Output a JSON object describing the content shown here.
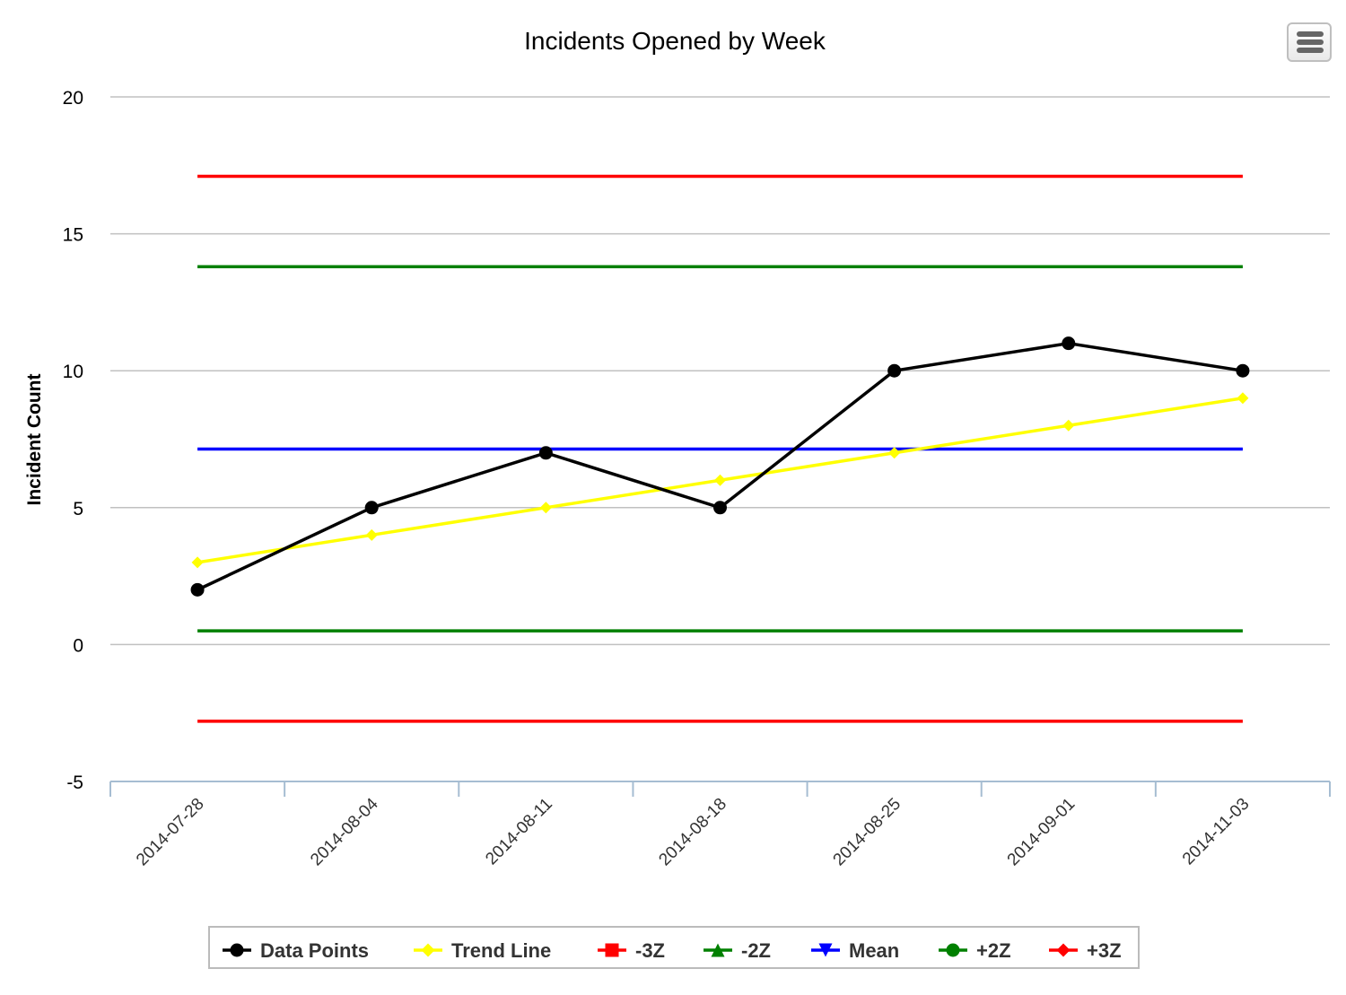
{
  "chart_data": {
    "type": "line",
    "title": "Incidents Opened by Week",
    "xlabel": "",
    "ylabel": "Incident Count",
    "ylim": [
      -5,
      20
    ],
    "yticks": [
      -5,
      0,
      5,
      10,
      15,
      20
    ],
    "grid": true,
    "legend_position": "bottom",
    "categories": [
      "2014-07-28",
      "2014-08-04",
      "2014-08-11",
      "2014-08-18",
      "2014-08-25",
      "2014-09-01",
      "2014-11-03"
    ],
    "series": [
      {
        "name": "Data Points",
        "color": "#000000",
        "marker": "circle",
        "values": [
          2,
          5,
          7,
          5,
          10,
          11,
          10
        ]
      },
      {
        "name": "Trend Line",
        "color": "#ffff00",
        "marker": "diamond",
        "values": [
          3,
          4,
          5,
          6,
          7,
          8,
          9
        ]
      },
      {
        "name": "-3Z",
        "color": "#ff0000",
        "marker": "square",
        "values": [
          -2.8,
          -2.8,
          -2.8,
          -2.8,
          -2.8,
          -2.8,
          -2.8
        ]
      },
      {
        "name": "-2Z",
        "color": "#008000",
        "marker": "triangle",
        "values": [
          0.5,
          0.5,
          0.5,
          0.5,
          0.5,
          0.5,
          0.5
        ]
      },
      {
        "name": "Mean",
        "color": "#0000ff",
        "marker": "triangle-down",
        "values": [
          7.14,
          7.14,
          7.14,
          7.14,
          7.14,
          7.14,
          7.14
        ]
      },
      {
        "name": "+2Z",
        "color": "#008000",
        "marker": "circle",
        "values": [
          13.8,
          13.8,
          13.8,
          13.8,
          13.8,
          13.8,
          13.8
        ]
      },
      {
        "name": "+3Z",
        "color": "#ff0000",
        "marker": "diamond",
        "values": [
          17.1,
          17.1,
          17.1,
          17.1,
          17.1,
          17.1,
          17.1
        ]
      }
    ]
  },
  "menu": {
    "icon": "hamburger-menu-icon"
  }
}
